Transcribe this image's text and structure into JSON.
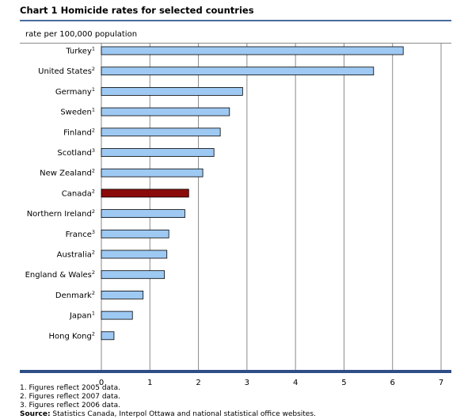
{
  "chart_data": {
    "type": "bar",
    "orientation": "horizontal",
    "title": "Chart 1  Homicide rates for selected countries",
    "ylabel": "rate per 100,000 population",
    "xlim": [
      0,
      7
    ],
    "xticks": [
      "0",
      "1",
      "2",
      "3",
      "4",
      "5",
      "6",
      "7"
    ],
    "grid": true,
    "categories": [
      {
        "name": "Turkey",
        "note": "1"
      },
      {
        "name": "United States",
        "note": "2"
      },
      {
        "name": "Germany",
        "note": "1"
      },
      {
        "name": "Sweden",
        "note": "1"
      },
      {
        "name": "Finland",
        "note": "2"
      },
      {
        "name": "Scotland",
        "note": "3"
      },
      {
        "name": "New Zealand",
        "note": "2"
      },
      {
        "name": "Canada",
        "note": "2"
      },
      {
        "name": "Northern Ireland",
        "note": "2"
      },
      {
        "name": "France",
        "note": "3"
      },
      {
        "name": "Australia",
        "note": "2"
      },
      {
        "name": "England & Wales",
        "note": "2"
      },
      {
        "name": "Denmark",
        "note": "2"
      },
      {
        "name": "Japan",
        "note": "1"
      },
      {
        "name": "Hong Kong",
        "note": "2"
      }
    ],
    "values": [
      6.22,
      5.61,
      2.91,
      2.64,
      2.45,
      2.32,
      2.09,
      1.8,
      1.72,
      1.39,
      1.35,
      1.3,
      0.86,
      0.64,
      0.26
    ],
    "highlight": "Canada",
    "colors": {
      "bar": "#9ec9f3",
      "highlight": "#8b0b0b",
      "grid": "#8a8a8a",
      "axis": "#2f4e85",
      "title_rule": "#4a6b9e"
    }
  },
  "footnotes": [
    "1. Figures reflect 2005 data.",
    "2. Figures reflect 2007 data.",
    "3. Figures reflect 2006 data."
  ],
  "source": {
    "label": "Source:",
    "text": " Statistics Canada, Interpol Ottawa and national statistical office websites."
  }
}
